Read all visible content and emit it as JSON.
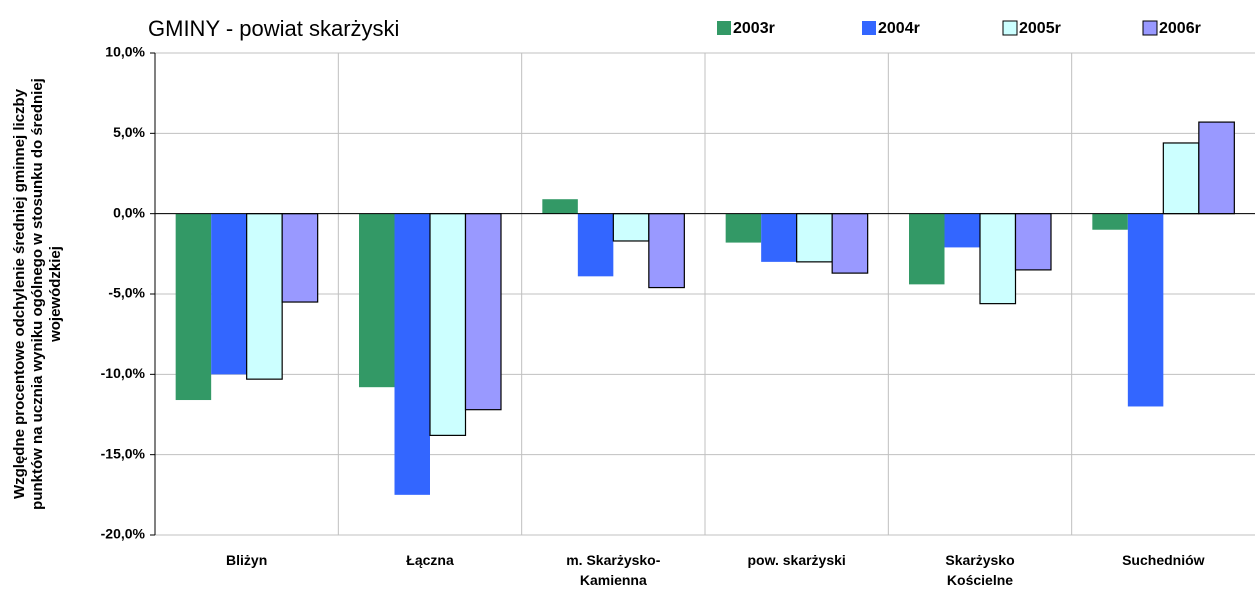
{
  "chart_data": {
    "type": "bar",
    "title": "GMINY -  powiat skarżyski",
    "y_label": "Względne procentowe odchylenie średniej gminnej liczby\npunktów na ucznia wyniku ogólnego w stosunku do średniej\nwojewódzkiej",
    "categories": [
      "Bliżyn",
      "Łączna",
      "m. Skarżysko-\nKamienna",
      "pow. skarżyski",
      "Skarżysko\nKościelne",
      "Suchedniów"
    ],
    "series": [
      {
        "name": "2003r",
        "color": "#339966",
        "values": [
          -11.6,
          -10.8,
          0.9,
          -1.8,
          -4.4,
          -1.0
        ]
      },
      {
        "name": "2004r",
        "color": "#3366ff",
        "values": [
          -10.0,
          -17.5,
          -3.9,
          -3.0,
          -2.1,
          -12.0
        ]
      },
      {
        "name": "2005r",
        "color": "#ccffff",
        "edgecolor": "#000000",
        "values": [
          -10.3,
          -13.8,
          -1.7,
          -3.0,
          -5.6,
          4.4
        ]
      },
      {
        "name": "2006r",
        "color": "#9999ff",
        "edgecolor": "#000000",
        "values": [
          -5.5,
          -12.2,
          -4.6,
          -3.7,
          -3.5,
          5.7
        ]
      }
    ],
    "ylim": [
      -20,
      10
    ],
    "yticks": [
      {
        "value": -20,
        "label": "-20,0%"
      },
      {
        "value": -15,
        "label": "-15,0%"
      },
      {
        "value": -10,
        "label": "-10,0%"
      },
      {
        "value": -5,
        "label": "-5,0%"
      },
      {
        "value": 0,
        "label": "0,0%"
      },
      {
        "value": 5,
        "label": "5,0%"
      },
      {
        "value": 10,
        "label": "10,0%"
      }
    ],
    "grid": true
  }
}
